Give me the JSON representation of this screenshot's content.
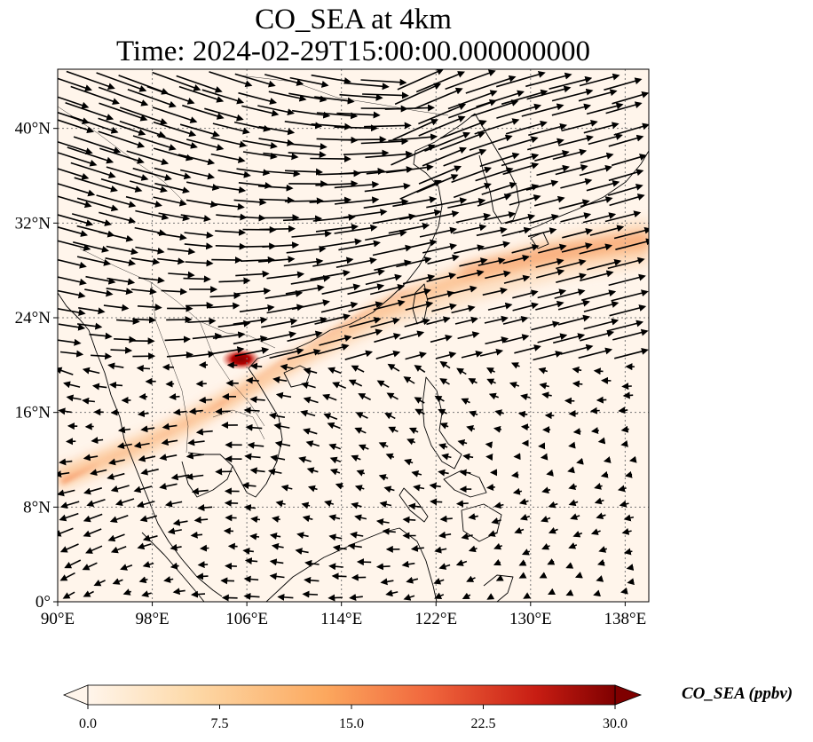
{
  "title_line1": "CO_SEA at 4km",
  "title_line2": "Time: 2024-02-29T15:00:00.000000000",
  "map": {
    "extent": {
      "lon": [
        90,
        140
      ],
      "lat": [
        0,
        45
      ]
    },
    "lon_ticks": [
      {
        "value": 90,
        "label": "90°E"
      },
      {
        "value": 98,
        "label": "98°E"
      },
      {
        "value": 106,
        "label": "106°E"
      },
      {
        "value": 114,
        "label": "114°E"
      },
      {
        "value": 122,
        "label": "122°E"
      },
      {
        "value": 130,
        "label": "130°E"
      },
      {
        "value": 138,
        "label": "138°E"
      }
    ],
    "lat_ticks": [
      {
        "value": 0,
        "label": "0°"
      },
      {
        "value": 8,
        "label": "8°N"
      },
      {
        "value": 16,
        "label": "16°N"
      },
      {
        "value": 24,
        "label": "24°N"
      },
      {
        "value": 32,
        "label": "32°N"
      },
      {
        "value": 40,
        "label": "40°N"
      }
    ],
    "gridlines": true,
    "background_color": "#fff5eb",
    "plume_peak": {
      "lon": 105.5,
      "lat": 20.5
    }
  },
  "colorbar": {
    "label": "CO_SEA (ppbv)",
    "min": 0,
    "max": 30,
    "ticks": [
      "0.0",
      "7.5",
      "15.0",
      "22.5",
      "30.0"
    ],
    "extend": "both",
    "colormap": "OrRd",
    "colors": [
      "#fff5eb",
      "#fdd9a8",
      "#fca85e",
      "#f0653c",
      "#c81d13",
      "#7f0000"
    ]
  }
}
